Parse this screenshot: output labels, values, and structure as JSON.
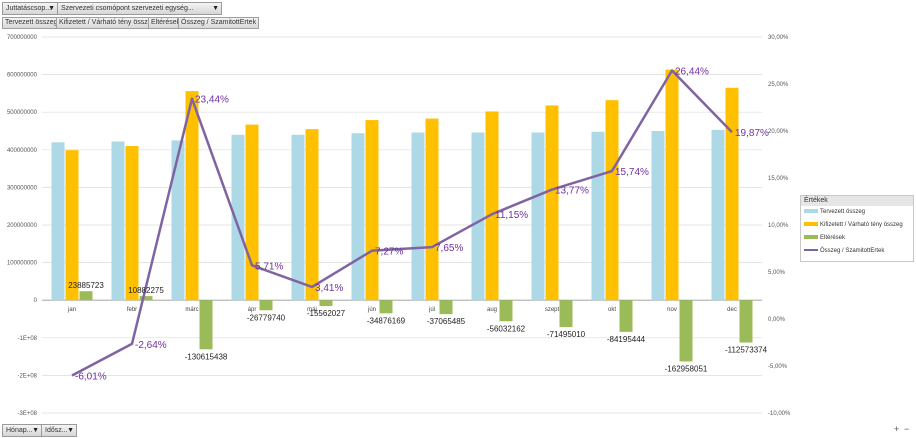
{
  "filters_top": [
    {
      "label": "Juttatáscsop..."
    },
    {
      "label": "Szervezeti csomópont szervezeti egység..."
    }
  ],
  "field_tags": [
    "Tervezett összeg",
    "Kifizetett / Várható tény összeg",
    "Eltérések",
    "Összeg / SzamitottErtek"
  ],
  "filters_bottom": [
    {
      "label": "Hónap..."
    },
    {
      "label": "Idősz..."
    }
  ],
  "zoom": {
    "plus": "+",
    "minus": "−"
  },
  "colors": {
    "planned": "#add8e6",
    "paid": "#ffc000",
    "diff": "#9bbb59",
    "line": "#8064a2",
    "label": "#7030a0"
  },
  "legend": {
    "title": "Értékek",
    "items": [
      {
        "name": "Tervezett összeg",
        "kind": "bar",
        "color": "#add8e6"
      },
      {
        "name": "Kifizetett / Várható tény összeg",
        "kind": "bar",
        "color": "#ffc000"
      },
      {
        "name": "Eltérések",
        "kind": "bar",
        "color": "#9bbb59"
      },
      {
        "name": "Összeg / SzamitottErtek",
        "kind": "line",
        "color": "#8064a2"
      }
    ]
  },
  "chart_data": {
    "type": "bar",
    "categories": [
      "jan",
      "febr",
      "márc",
      "ápr",
      "máj",
      "jún",
      "júl",
      "aug",
      "szept",
      "okt",
      "nov",
      "dec"
    ],
    "series": [
      {
        "name": "Tervezett összeg",
        "values": [
          420000000,
          422000000,
          425000000,
          440000000,
          440000000,
          444000000,
          446000000,
          446000000,
          446000000,
          448000000,
          450000000,
          453000000
        ]
      },
      {
        "name": "Kifizetett / Várható tény összeg",
        "values": [
          399000000,
          410000000,
          556000000,
          467000000,
          455000000,
          479000000,
          483000000,
          502000000,
          518000000,
          532000000,
          613000000,
          565000000
        ]
      },
      {
        "name": "Eltérések",
        "values": [
          23885723,
          10882275,
          -130615438,
          -26779740,
          -15562027,
          -34876169,
          -37065485,
          -56032162,
          -71495010,
          -84195444,
          -162958051,
          -112573374
        ],
        "labels": [
          "23885723",
          "10882275",
          "-130615438",
          "-26779740",
          "-15562027",
          "-34876169",
          "-37065485",
          "-56032162",
          "-71495010",
          "-84195444",
          "-162958051",
          "-112573374"
        ]
      },
      {
        "name": "Összeg / SzamitottErtek",
        "type": "line",
        "axis": "right",
        "values": [
          -6.01,
          -2.64,
          23.44,
          5.71,
          3.41,
          7.27,
          7.65,
          11.15,
          13.77,
          15.74,
          26.44,
          19.87
        ],
        "labels": [
          "-6,01%",
          "-2,64%",
          "23,44%",
          "5,71%",
          "3,41%",
          "7,27%",
          "7,65%",
          "11,15%",
          "13,77%",
          "15,74%",
          "26,44%",
          "19,87%"
        ]
      }
    ],
    "y_left": {
      "range": [
        -300000000,
        700000000
      ],
      "ticks": [
        "700000000",
        "600000000",
        "500000000",
        "400000000",
        "300000000",
        "200000000",
        "100000000",
        "0",
        "-1E+08",
        "-2E+08",
        "-3E+08"
      ]
    },
    "y_right": {
      "range": [
        -10,
        30
      ],
      "ticks": [
        "30,00%",
        "25,00%",
        "20,00%",
        "15,00%",
        "10,00%",
        "5,00%",
        "0,00%",
        "-5,00%",
        "-10,00%"
      ]
    },
    "grid": true,
    "legend_position": "right"
  }
}
